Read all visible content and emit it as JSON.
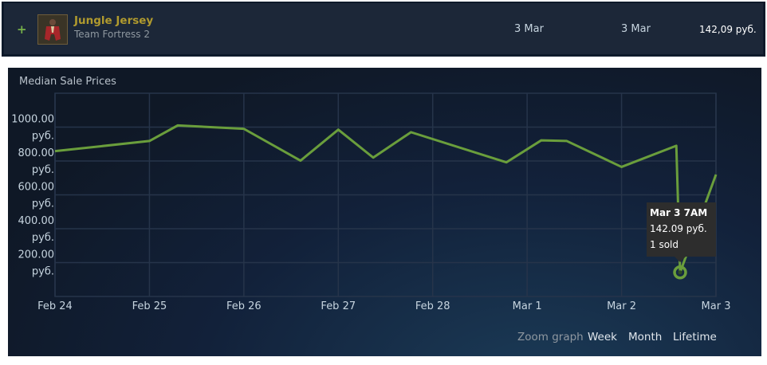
{
  "listing": {
    "item_name": "Jungle Jersey",
    "game_name": "Team Fortress 2",
    "date_listed": "3 Mar",
    "date_sold": "3 Mar",
    "price": "142,09 руб.",
    "expand_icon": "plus-icon",
    "item_icon": "jersey-icon"
  },
  "chart": {
    "panel_title": "Median Sale Prices",
    "tooltip": {
      "title": "Mar 3 7AM",
      "price": "142.09 руб.",
      "sold": "1 sold"
    },
    "zoom": {
      "label": "Zoom graph",
      "options": [
        "Week",
        "Month",
        "Lifetime"
      ]
    }
  },
  "chart_data": {
    "type": "line",
    "title": "Median Sale Prices",
    "x_ticks": [
      "Feb 24",
      "Feb 25",
      "Feb 26",
      "Feb 27",
      "Feb 28",
      "Mar 1",
      "Mar 2",
      "Mar 3"
    ],
    "y_ticks": [
      {
        "line1": "1000.00",
        "line2": "руб.",
        "value": 1000
      },
      {
        "line1": "800.00",
        "line2": "руб.",
        "value": 800
      },
      {
        "line1": "600.00",
        "line2": "руб.",
        "value": 600
      },
      {
        "line1": "400.00",
        "line2": "руб.",
        "value": 400
      },
      {
        "line1": "200.00",
        "line2": "руб.",
        "value": 200
      }
    ],
    "ylim": [
      0,
      1200
    ],
    "x_range": [
      0,
      7
    ],
    "series": [
      {
        "x": [
          0,
          1.0,
          1.3,
          2.0,
          2.6,
          3.0,
          3.37,
          3.77,
          4.78,
          5.15,
          5.42,
          6.0,
          6.58,
          6.62,
          7.0
        ],
        "y": [
          858,
          918,
          1010,
          990,
          802,
          985,
          820,
          970,
          792,
          922,
          918,
          765,
          890,
          142.09,
          720
        ]
      }
    ],
    "highlight": {
      "x": 6.62,
      "y": 142.09
    },
    "colors": {
      "line": "#6a9e3c",
      "grid": "#26344a",
      "axis_text": "#c6d4df"
    }
  }
}
